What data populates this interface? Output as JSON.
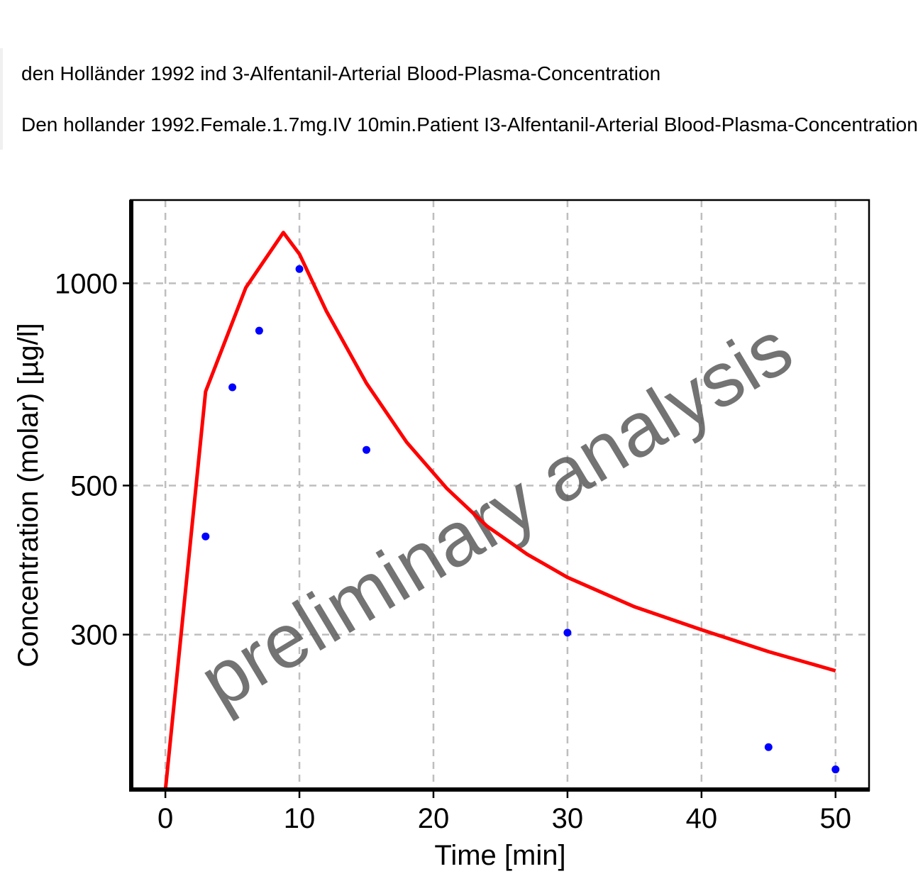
{
  "legend": {
    "entries": [
      "den Holländer 1992 ind 3-Alfentanil-Arterial Blood-Plasma-Concentration",
      "Den hollander 1992.Female.1.7mg.IV 10min.Patient I3-Alfentanil-Arterial Blood-Plasma-Concentration"
    ]
  },
  "watermark": "preliminary analysis",
  "colors": {
    "observed": "#0000ff",
    "simulated": "#ff0000",
    "grid": "#bebebe",
    "watermark": "#5a5a5a"
  },
  "chart_data": {
    "type": "scatter",
    "xlabel": "Time [min]",
    "ylabel": "Concentration (molar) [µg/l]",
    "y_scale": "log",
    "xlim": [
      -2.6,
      52.5
    ],
    "ylim": [
      176,
      1330
    ],
    "x_ticks": [
      0,
      10,
      20,
      30,
      40,
      50
    ],
    "y_ticks": [
      300,
      500,
      1000
    ],
    "grid": true,
    "legend_position": "top",
    "series": [
      {
        "name": "den Holländer 1992 ind 3-Alfentanil-Arterial Blood-Plasma-Concentration",
        "type": "scatter",
        "x": [
          3,
          5,
          7,
          10,
          15,
          30,
          45,
          50
        ],
        "y": [
          420,
          700,
          850,
          1050,
          565,
          302,
          204,
          189
        ]
      },
      {
        "name": "Den hollander 1992.Female.1.7mg.IV 10min.Patient I3-Alfentanil-Arterial Blood-Plasma-Concentration",
        "type": "line",
        "x": [
          0,
          3,
          6,
          8.8,
          10,
          12,
          15,
          18,
          21,
          24,
          27,
          30,
          35,
          40,
          45,
          50
        ],
        "y": [
          176,
          690,
          985,
          1190,
          1105,
          910,
          710,
          580,
          495,
          435,
          395,
          365,
          330,
          305,
          283,
          265
        ]
      }
    ]
  }
}
